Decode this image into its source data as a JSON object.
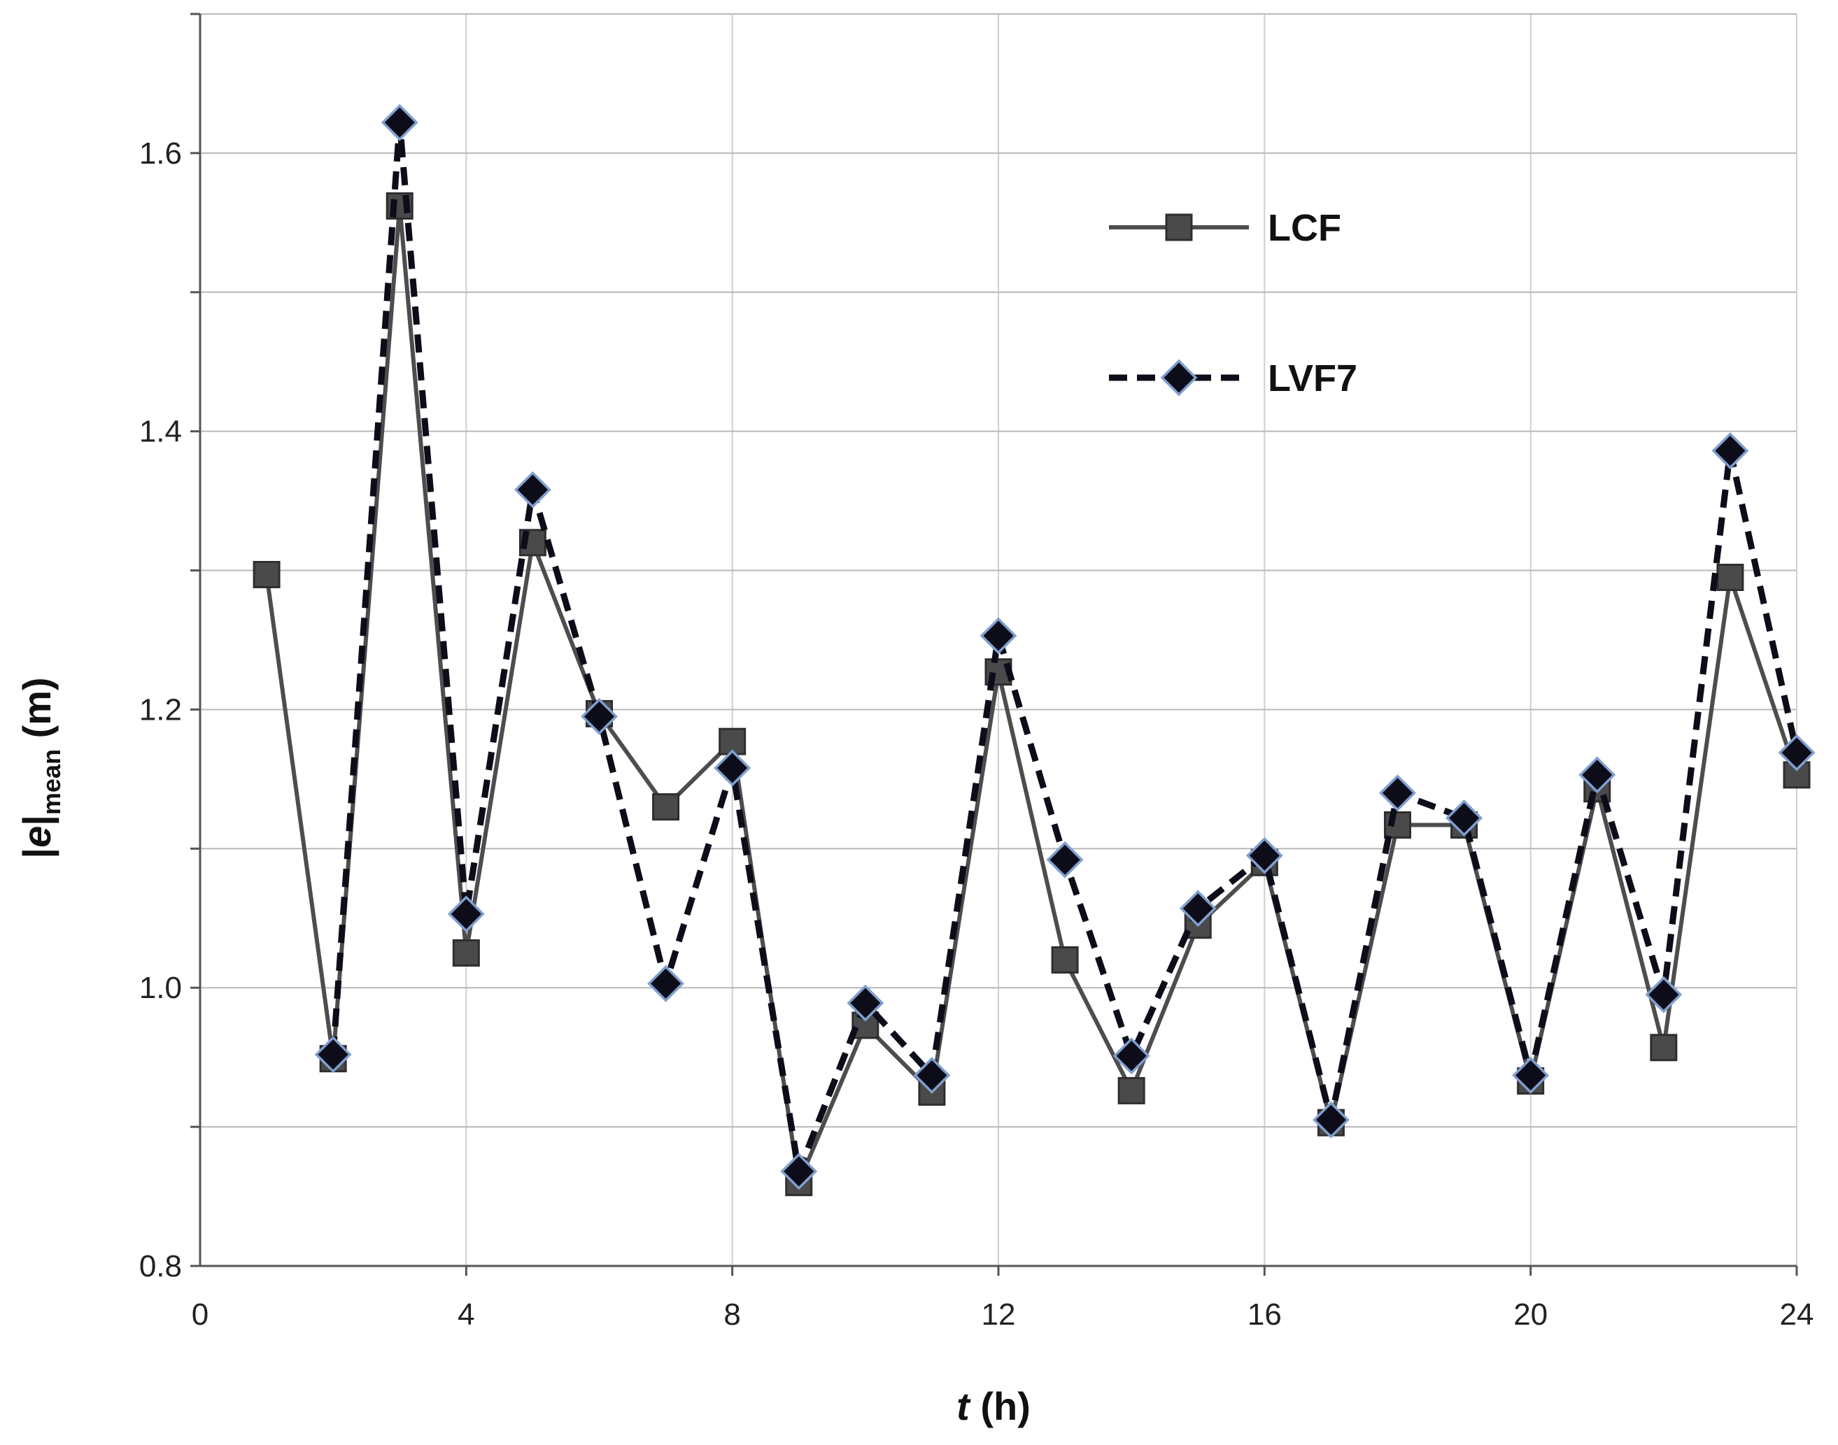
{
  "chart_data": {
    "type": "line",
    "xlabel": {
      "var": "t",
      "unit": " (h)"
    },
    "ylabel": {
      "bar_open": "|",
      "var": "e",
      "bar_close": "|",
      "sub": "mean",
      "unit": " (m)"
    },
    "xlim": [
      0,
      24
    ],
    "ylim": [
      0.8,
      1.7
    ],
    "x_ticks": [
      "0",
      "4",
      "8",
      "12",
      "16",
      "20",
      "24"
    ],
    "y_ticks": [
      "0.8",
      "1.0",
      "1.2",
      "1.4",
      "1.6"
    ],
    "grid": true,
    "legend_position": "top-right",
    "series": [
      {
        "name": "LCF",
        "style": "solid",
        "marker": "square",
        "color": "#4d4d4d",
        "x": [
          1,
          2,
          3,
          4,
          5,
          6,
          7,
          8,
          9,
          10,
          11,
          12,
          13,
          14,
          15,
          16,
          17,
          18,
          19,
          20,
          21,
          22,
          23,
          24
        ],
        "y": [
          1.297,
          0.949,
          1.562,
          1.025,
          1.32,
          1.197,
          1.13,
          1.177,
          0.86,
          0.973,
          0.925,
          1.227,
          1.02,
          0.926,
          1.045,
          1.09,
          0.903,
          1.117,
          1.117,
          0.933,
          1.143,
          0.957,
          1.295,
          1.153
        ]
      },
      {
        "name": "LVF7",
        "style": "dashed",
        "marker": "diamond",
        "color": "#0d0d1a",
        "x": [
          2,
          3,
          4,
          5,
          6,
          7,
          8,
          9,
          10,
          11,
          12,
          13,
          14,
          15,
          16,
          17,
          18,
          19,
          20,
          21,
          22,
          23,
          24
        ],
        "y": [
          0.952,
          1.622,
          1.053,
          1.358,
          1.195,
          1.003,
          1.158,
          0.868,
          0.989,
          0.937,
          1.253,
          1.092,
          0.951,
          1.057,
          1.095,
          0.905,
          1.14,
          1.122,
          0.937,
          1.153,
          0.995,
          1.386,
          1.169
        ]
      }
    ]
  }
}
